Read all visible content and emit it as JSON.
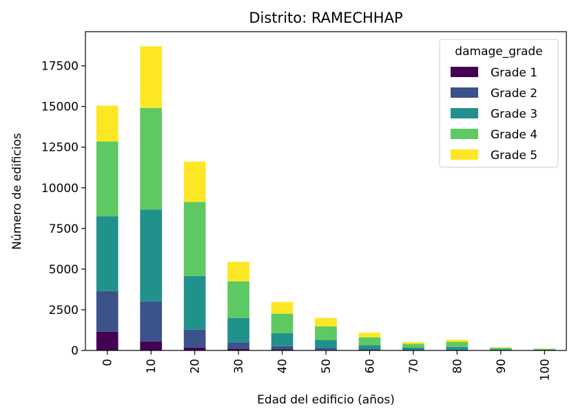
{
  "chart_data": {
    "type": "bar",
    "stacked": true,
    "title": "Distrito: RAMECHHAP",
    "xlabel": "Edad del edificio (años)",
    "ylabel": "Número de edificios",
    "categories": [
      "0",
      "10",
      "20",
      "30",
      "40",
      "50",
      "60",
      "70",
      "80",
      "90",
      "100"
    ],
    "ylim": [
      0,
      19600
    ],
    "yticks": [
      0,
      2500,
      5000,
      7500,
      10000,
      12500,
      15000,
      17500
    ],
    "legend": {
      "title": "damage_grade",
      "position": "top-right"
    },
    "grid": false,
    "series": [
      {
        "name": "Grade 1",
        "color": "#440154",
        "values": [
          1150,
          560,
          180,
          100,
          60,
          30,
          20,
          10,
          10,
          5,
          5
        ]
      },
      {
        "name": "Grade 2",
        "color": "#3b528b",
        "values": [
          2500,
          2450,
          1100,
          400,
          200,
          120,
          60,
          30,
          40,
          15,
          10
        ]
      },
      {
        "name": "Grade 3",
        "color": "#21918c",
        "values": [
          4600,
          5650,
          3300,
          1500,
          800,
          500,
          250,
          130,
          170,
          60,
          35
        ]
      },
      {
        "name": "Grade 4",
        "color": "#5ec962",
        "values": [
          4600,
          6250,
          4550,
          2250,
          1200,
          830,
          480,
          230,
          310,
          80,
          50
        ]
      },
      {
        "name": "Grade 5",
        "color": "#fde725",
        "values": [
          2200,
          3790,
          2480,
          1200,
          720,
          520,
          280,
          120,
          130,
          40,
          20
        ]
      }
    ]
  }
}
